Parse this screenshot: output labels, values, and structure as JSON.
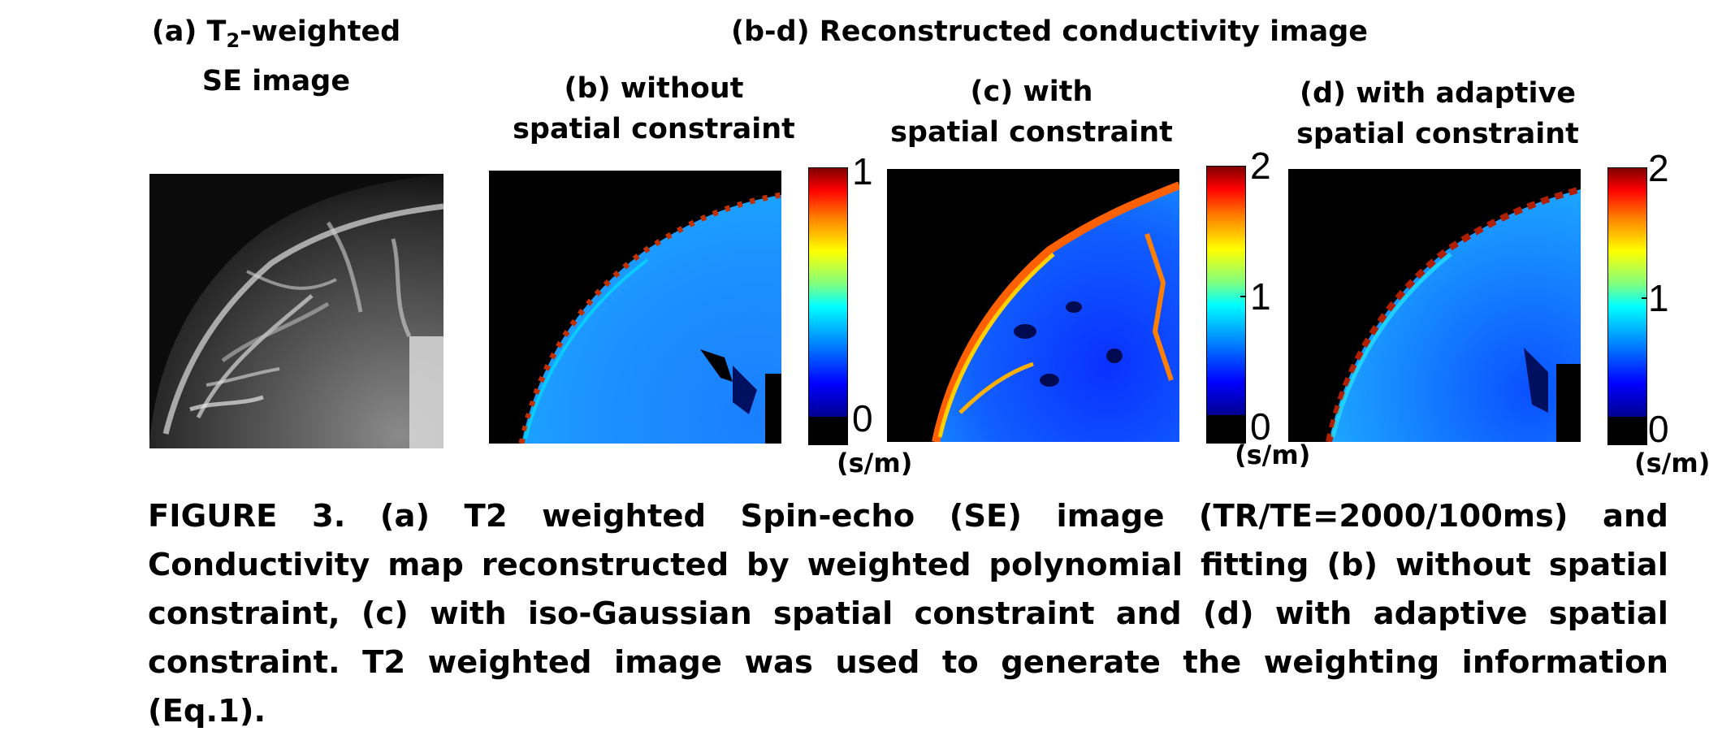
{
  "panels": {
    "a": {
      "label_line1_prefix": "(a) T",
      "label_line1_sub": "2",
      "label_line1_suffix": "-weighted",
      "label_line2": "SE image"
    },
    "group_title": "(b-d) Reconstructed conductivity image",
    "b": {
      "label_line1": "(b) without",
      "label_line2": "spatial constraint",
      "cbar_max": "1",
      "cbar_min": "0",
      "unit": "(s/m)"
    },
    "c": {
      "label_line1": "(c) with",
      "label_line2": "spatial constraint",
      "cbar_max": "2",
      "cbar_mid": "1",
      "cbar_min": "0",
      "unit": "(s/m)"
    },
    "d": {
      "label_line1": "(d) with adaptive",
      "label_line2": "spatial constraint",
      "cbar_max": "2",
      "cbar_mid": "1",
      "cbar_min": "0",
      "unit": "(s/m)"
    }
  },
  "colors": {
    "colormap": [
      "#00008f",
      "#0000ff",
      "#00ffff",
      "#ffff00",
      "#ff0000",
      "#800000"
    ],
    "background": "#000000"
  },
  "caption": "FIGURE 3. (a) T2 weighted Spin-echo (SE) image (TR/TE=2000/100ms) and Conductivity map reconstructed by weighted polynomial fitting (b) without spatial constraint, (c) with iso-Gaussian spatial constraint and (d) with adaptive spatial constraint. T2 weighted image was used to generate the weighting information (Eq.1)."
}
